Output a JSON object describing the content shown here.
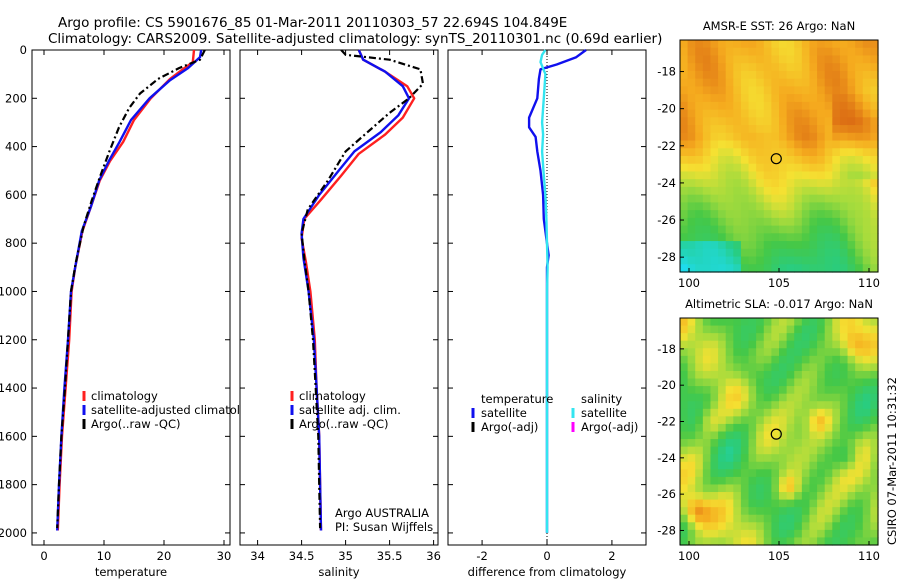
{
  "figure": {
    "title_line1": "Argo profile: CS 5901676_85 01-Mar-2011 20110303_57 22.694S 104.849E",
    "title_line2": "Climatology: CARS2009. Satellite-adjusted climatology: synTS_20110301.nc (0.69d earlier)",
    "footer": "CSIRO 07-Mar-2011 10:31:32"
  },
  "colors": {
    "climatology": "#ff2020",
    "satellite": "#1010ee",
    "argo": "#000000",
    "cyan": "#33e5f0",
    "magenta": "#ff00ff"
  },
  "chart_data": [
    {
      "type": "line",
      "id": "temperature",
      "xlabel": "temperature",
      "ylabel": "",
      "xlim": [
        -2,
        31
      ],
      "ylim": [
        2050,
        0
      ],
      "xticks": [
        0,
        10,
        20,
        30
      ],
      "yticks": [
        0,
        200,
        400,
        600,
        800,
        1000,
        1200,
        1400,
        1600,
        1800,
        2000
      ],
      "legend": [
        "climatology",
        "satellite-adjusted climatology",
        "Argo(..raw -QC)"
      ],
      "legend_position": "bottom-right",
      "series": [
        {
          "name": "climatology",
          "style": "climatology",
          "points": [
            [
              25.0,
              0
            ],
            [
              24.8,
              50
            ],
            [
              23.4,
              75
            ],
            [
              21.0,
              120
            ],
            [
              17.8,
              200
            ],
            [
              15.0,
              290
            ],
            [
              13.2,
              380
            ],
            [
              11.0,
              460
            ],
            [
              9.3,
              540
            ],
            [
              7.8,
              650
            ],
            [
              6.4,
              750
            ],
            [
              5.2,
              900
            ],
            [
              4.6,
              1000
            ],
            [
              4.2,
              1200
            ],
            [
              3.6,
              1400
            ],
            [
              3.0,
              1600
            ],
            [
              2.6,
              1800
            ],
            [
              2.3,
              1990
            ]
          ]
        },
        {
          "name": "satellite-adjusted climatology",
          "style": "satellite",
          "points": [
            [
              26.2,
              0
            ],
            [
              26.0,
              30
            ],
            [
              24.0,
              75
            ],
            [
              21.0,
              125
            ],
            [
              17.6,
              200
            ],
            [
              14.5,
              290
            ],
            [
              12.6,
              380
            ],
            [
              10.8,
              460
            ],
            [
              9.2,
              540
            ],
            [
              7.8,
              650
            ],
            [
              6.3,
              750
            ],
            [
              5.2,
              900
            ],
            [
              4.5,
              1000
            ],
            [
              4.0,
              1200
            ],
            [
              3.4,
              1400
            ],
            [
              2.9,
              1600
            ],
            [
              2.5,
              1800
            ],
            [
              2.2,
              1990
            ]
          ]
        },
        {
          "name": "Argo(..raw -QC)",
          "style": "argo",
          "points": [
            [
              26.8,
              0
            ],
            [
              26.0,
              40
            ],
            [
              22.5,
              75
            ],
            [
              19.0,
              120
            ],
            [
              16.0,
              180
            ],
            [
              14.2,
              240
            ],
            [
              12.5,
              320
            ],
            [
              10.9,
              420
            ],
            [
              9.4,
              520
            ],
            [
              8.0,
              620
            ],
            [
              6.6,
              730
            ],
            [
              5.3,
              880
            ],
            [
              4.5,
              1000
            ],
            [
              4.0,
              1200
            ],
            [
              3.5,
              1400
            ],
            [
              2.9,
              1600
            ],
            [
              2.5,
              1800
            ],
            [
              2.2,
              1980
            ]
          ]
        }
      ]
    },
    {
      "type": "line",
      "id": "salinity",
      "xlabel": "salinity",
      "ylabel": "",
      "xlim": [
        33.8,
        36.05
      ],
      "ylim": [
        2050,
        0
      ],
      "xticks": [
        34,
        34.5,
        35,
        35.5,
        36
      ],
      "xticklabels": [
        "34",
        "34.5",
        "35",
        "35.5",
        "36"
      ],
      "yticks": [
        0,
        200,
        400,
        600,
        800,
        1000,
        1200,
        1400,
        1600,
        1800,
        2000
      ],
      "legend": [
        "climatology",
        "satellite adj. clim.",
        "Argo(..raw -QC)"
      ],
      "legend_position": "bottom-right",
      "annotation": [
        "Argo AUSTRALIA",
        "PI: Susan Wijffels"
      ],
      "series": [
        {
          "name": "climatology",
          "style": "climatology",
          "points": [
            [
              35.15,
              0
            ],
            [
              35.2,
              40
            ],
            [
              35.45,
              90
            ],
            [
              35.7,
              150
            ],
            [
              35.78,
              200
            ],
            [
              35.65,
              280
            ],
            [
              35.45,
              350
            ],
            [
              35.15,
              430
            ],
            [
              34.95,
              520
            ],
            [
              34.72,
              620
            ],
            [
              34.53,
              700
            ],
            [
              34.5,
              780
            ],
            [
              34.55,
              880
            ],
            [
              34.6,
              1000
            ],
            [
              34.65,
              1200
            ],
            [
              34.67,
              1400
            ],
            [
              34.7,
              1600
            ],
            [
              34.71,
              1800
            ],
            [
              34.72,
              1990
            ]
          ]
        },
        {
          "name": "satellite adj. clim.",
          "style": "satellite",
          "points": [
            [
              35.15,
              0
            ],
            [
              35.2,
              40
            ],
            [
              35.45,
              90
            ],
            [
              35.65,
              150
            ],
            [
              35.72,
              200
            ],
            [
              35.6,
              270
            ],
            [
              35.4,
              340
            ],
            [
              35.1,
              420
            ],
            [
              34.92,
              500
            ],
            [
              34.7,
              600
            ],
            [
              34.52,
              700
            ],
            [
              34.5,
              760
            ],
            [
              34.52,
              860
            ],
            [
              34.58,
              1000
            ],
            [
              34.64,
              1200
            ],
            [
              34.67,
              1400
            ],
            [
              34.7,
              1600
            ],
            [
              34.71,
              1800
            ],
            [
              34.72,
              1990
            ]
          ]
        },
        {
          "name": "Argo(..raw -QC)",
          "style": "argo",
          "points": [
            [
              34.95,
              0
            ],
            [
              35.0,
              20
            ],
            [
              35.5,
              40
            ],
            [
              35.85,
              80
            ],
            [
              35.88,
              140
            ],
            [
              35.72,
              200
            ],
            [
              35.5,
              260
            ],
            [
              35.25,
              340
            ],
            [
              35.0,
              420
            ],
            [
              34.8,
              540
            ],
            [
              34.57,
              660
            ],
            [
              34.5,
              760
            ],
            [
              34.53,
              860
            ],
            [
              34.58,
              1000
            ],
            [
              34.63,
              1200
            ],
            [
              34.66,
              1400
            ],
            [
              34.69,
              1600
            ],
            [
              34.7,
              1800
            ],
            [
              34.71,
              1980
            ]
          ]
        }
      ]
    },
    {
      "type": "line",
      "id": "difference",
      "xlabel": "difference from climatology",
      "ylabel": "",
      "xlim": [
        -3.05,
        3.05
      ],
      "ylim": [
        2050,
        0
      ],
      "xticks": [
        -2,
        0,
        2
      ],
      "yticks": [
        0,
        200,
        400,
        600,
        800,
        1000,
        1200,
        1400,
        1600,
        1800,
        2000
      ],
      "legend_groups": [
        {
          "title": "temperature",
          "items": [
            "satellite",
            "Argo(-adj)"
          ]
        },
        {
          "title": "salinity",
          "items": [
            "satellite",
            "Argo(-adj)"
          ]
        }
      ],
      "legend_position": "bottom",
      "series": [
        {
          "name": "temperature satellite",
          "style": "satellite",
          "points": [
            [
              1.2,
              0
            ],
            [
              0.9,
              30
            ],
            [
              0.3,
              60
            ],
            [
              -0.2,
              80
            ],
            [
              -0.25,
              120
            ],
            [
              -0.3,
              200
            ],
            [
              -0.55,
              280
            ],
            [
              -0.55,
              320
            ],
            [
              -0.35,
              360
            ],
            [
              -0.3,
              420
            ],
            [
              -0.2,
              500
            ],
            [
              -0.12,
              600
            ],
            [
              -0.1,
              700
            ],
            [
              0.0,
              800
            ],
            [
              0.05,
              850
            ],
            [
              0.0,
              900
            ],
            [
              0.0,
              1200
            ],
            [
              0.0,
              2000
            ]
          ]
        },
        {
          "name": "temperature Argo(-adj)",
          "style": "argo",
          "points": []
        },
        {
          "name": "salinity satellite",
          "style": "cyan",
          "points": [
            [
              -0.05,
              0
            ],
            [
              -0.15,
              20
            ],
            [
              -0.2,
              50
            ],
            [
              -0.05,
              100
            ],
            [
              -0.1,
              200
            ],
            [
              -0.15,
              300
            ],
            [
              -0.12,
              350
            ],
            [
              -0.15,
              420
            ],
            [
              -0.1,
              520
            ],
            [
              -0.05,
              600
            ],
            [
              -0.02,
              700
            ],
            [
              0.0,
              800
            ],
            [
              0.02,
              900
            ],
            [
              0.0,
              1000
            ],
            [
              0.0,
              1500
            ],
            [
              0.0,
              2000
            ]
          ]
        },
        {
          "name": "salinity Argo(-adj)",
          "style": "magenta",
          "points": []
        }
      ]
    },
    {
      "type": "heatmap",
      "id": "sst-map",
      "title": "AMSR-E SST: 26 Argo: NaN",
      "xlim": [
        99.5,
        110.5
      ],
      "ylim": [
        -28.8,
        -16.3
      ],
      "xticks": [
        100,
        105,
        110
      ],
      "yticks": [
        -18,
        -20,
        -22,
        -24,
        -26,
        -28
      ],
      "marker": {
        "lon": 104.849,
        "lat": -22.694
      },
      "field": "sst"
    },
    {
      "type": "heatmap",
      "id": "sla-map",
      "title": "Altimetric SLA: -0.017 Argo: NaN",
      "xlim": [
        99.5,
        110.5
      ],
      "ylim": [
        -28.8,
        -16.3
      ],
      "xticks": [
        100,
        105,
        110
      ],
      "yticks": [
        -18,
        -20,
        -22,
        -24,
        -26,
        -28
      ],
      "marker": {
        "lon": 104.849,
        "lat": -22.694
      },
      "field": "sla"
    }
  ]
}
